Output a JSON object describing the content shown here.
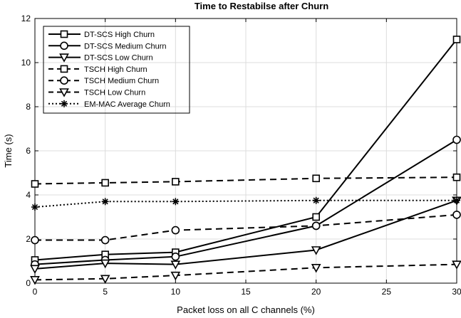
{
  "chart_data": {
    "type": "line",
    "title": "Time to Restabilse after Churn",
    "xlabel": "Packet loss on all C channels (%)",
    "ylabel": "Time (s)",
    "xlim": [
      0,
      30
    ],
    "ylim": [
      0,
      12
    ],
    "xticks": [
      0,
      5,
      10,
      15,
      20,
      25,
      30
    ],
    "yticks": [
      0,
      2,
      4,
      6,
      8,
      10,
      12
    ],
    "grid": true,
    "legend_position": "top-left",
    "x": [
      0,
      5,
      10,
      20,
      30
    ],
    "series": [
      {
        "name": "DT-SCS High Churn",
        "values": [
          1.05,
          1.3,
          1.4,
          3.0,
          11.05
        ],
        "marker": "square",
        "dash": "solid"
      },
      {
        "name": "DT-SCS Medium Churn",
        "values": [
          0.85,
          1.05,
          1.2,
          2.6,
          6.5
        ],
        "marker": "circle",
        "dash": "solid"
      },
      {
        "name": "DT-SCS Low Churn",
        "values": [
          0.65,
          0.9,
          0.85,
          1.5,
          3.75
        ],
        "marker": "triangle-down",
        "dash": "solid"
      },
      {
        "name": "TSCH High Churn",
        "values": [
          4.5,
          4.55,
          4.6,
          4.75,
          4.8
        ],
        "marker": "square",
        "dash": "dashed"
      },
      {
        "name": "TSCH Medium Churn",
        "values": [
          1.95,
          1.95,
          2.4,
          2.6,
          3.1
        ],
        "marker": "circle",
        "dash": "dashed"
      },
      {
        "name": "TSCH Low Churn",
        "values": [
          0.15,
          0.2,
          0.35,
          0.7,
          0.85
        ],
        "marker": "triangle-down",
        "dash": "dashed"
      },
      {
        "name": "EM-MAC Average Churn",
        "values": [
          3.45,
          3.7,
          3.7,
          3.75,
          3.75
        ],
        "marker": "asterisk",
        "dash": "dotted"
      }
    ],
    "colors": {
      "line": "#000000",
      "grid": "#dcdcdc",
      "background": "#ffffff"
    }
  }
}
